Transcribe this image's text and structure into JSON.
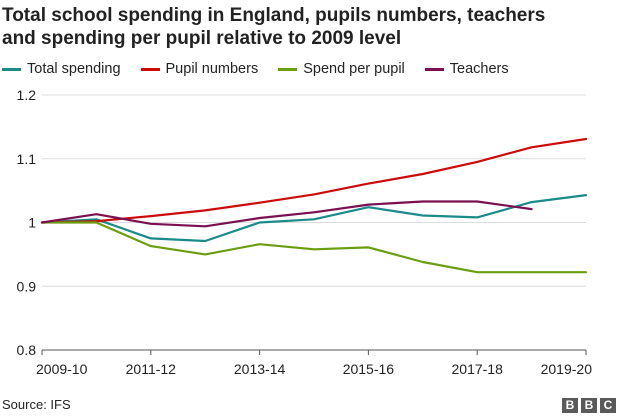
{
  "chart_data": {
    "type": "line",
    "title": "Total school spending in England, pupils numbers, teachers\nand spending per pupil relative to 2009 level",
    "xlabel": "",
    "ylabel": "",
    "x": [
      "2009-10",
      "2010-11",
      "2011-12",
      "2012-13",
      "2013-14",
      "2014-15",
      "2015-16",
      "2016-17",
      "2017-18",
      "2018-19",
      "2019-20"
    ],
    "x_tick_labels": [
      "2009-10",
      "2011-12",
      "2013-14",
      "2015-16",
      "2017-18",
      "2019-20"
    ],
    "y_ticks": [
      0.8,
      0.9,
      1,
      1.1,
      1.2
    ],
    "y_tick_labels": [
      "0.8",
      "0.9",
      "1",
      "1.1",
      "1.2"
    ],
    "ylim": [
      0.8,
      1.2
    ],
    "grid": true,
    "legend_placement": "top-left",
    "series": [
      {
        "name": "Total spending",
        "color": "#1a8a8a",
        "values": [
          1.0,
          1.005,
          0.975,
          0.971,
          1.0,
          1.005,
          1.024,
          1.011,
          1.008,
          1.032,
          1.043
        ]
      },
      {
        "name": "Pupil numbers",
        "color": "#cc0a0a",
        "values": [
          1.0,
          1.002,
          1.01,
          1.019,
          1.031,
          1.044,
          1.061,
          1.076,
          1.095,
          1.118,
          1.131
        ]
      },
      {
        "name": "Spend per pupil",
        "color": "#6b9e0f",
        "values": [
          1.0,
          1.0,
          0.963,
          0.95,
          0.966,
          0.958,
          0.961,
          0.938,
          0.922,
          0.922,
          0.922
        ]
      },
      {
        "name": "Teachers",
        "color": "#7a1050",
        "values": [
          1.0,
          1.013,
          0.998,
          0.994,
          1.007,
          1.016,
          1.028,
          1.033,
          1.033,
          1.021,
          null
        ]
      }
    ]
  },
  "footer": {
    "source": "Source: IFS",
    "logo": [
      "B",
      "B",
      "C"
    ]
  }
}
